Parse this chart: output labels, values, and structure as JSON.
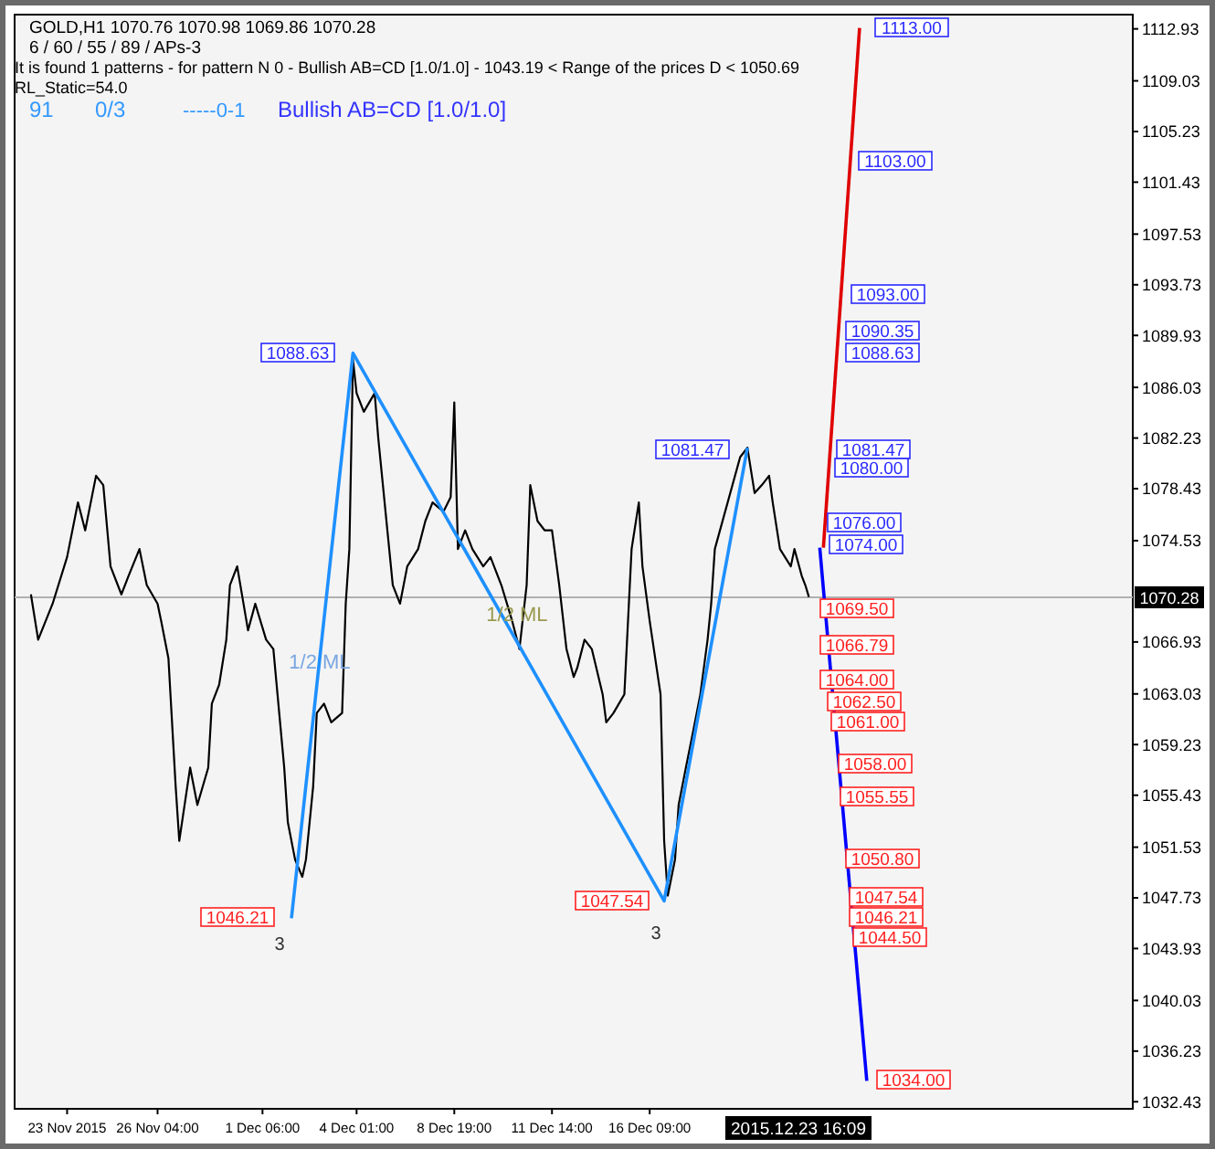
{
  "chart_data": {
    "type": "line",
    "title": "GOLD,H1  1070.76 1070.98 1069.86 1070.28",
    "annotations": [
      "6 / 60 / 55 / 89 / APs-3",
      "It is found 1 patterns  -  for pattern N 0 - Bullish AB=CD [1.0/1.0] - 1043.19 < Range of the prices D < 1050.69",
      "RL_Static=54.0",
      "91",
      "0/3",
      "-----0-1",
      "Bullish AB=CD [1.0/1.0]",
      "1/2 ML",
      "1/2 ML",
      "3",
      "3",
      "2015.12.23 16:09",
      "1088.63",
      "1046.21",
      "1047.54",
      "1081.47",
      "1113.00",
      "1103.00",
      "1093.00",
      "1090.35",
      "1088.63",
      "1081.47",
      "1080.00",
      "1076.00",
      "1074.00",
      "1069.50",
      "1066.79",
      "1064.00",
      "1062.50",
      "1061.00",
      "1058.00",
      "1055.55",
      "1050.80",
      "1047.54",
      "1046.21",
      "1044.50",
      "1034.00"
    ],
    "categories": [
      null,
      null,
      null,
      null,
      null,
      null,
      null,
      null,
      null,
      null,
      null,
      null,
      null,
      null,
      "23 Nov 2015",
      null,
      null,
      null,
      null,
      null,
      null,
      null,
      null,
      null,
      null,
      null,
      null,
      null,
      null,
      null,
      null,
      null,
      null,
      null,
      null,
      null,
      null,
      null,
      null,
      "26 Nov 04:00",
      null,
      null,
      null,
      null,
      null,
      null,
      null,
      null,
      null,
      null,
      null,
      null,
      null,
      null,
      null,
      null,
      null,
      null,
      null,
      null,
      null,
      null,
      null,
      null,
      null,
      null,
      null,
      null,
      "1 Dec 06:00",
      null,
      null,
      null,
      null,
      null,
      null,
      null,
      null,
      null,
      null,
      null,
      null,
      null,
      null,
      null,
      null,
      null,
      null,
      null,
      null,
      null,
      null,
      null,
      null,
      null,
      "4 Dec 01:00",
      null,
      null,
      null,
      null,
      null,
      null,
      null,
      null,
      null,
      null,
      null,
      null,
      null,
      null,
      null,
      null,
      null,
      null,
      null,
      null,
      null,
      null,
      null,
      null,
      null,
      null,
      "8 Dec 19:00",
      null,
      null,
      null,
      null,
      null,
      null,
      null,
      null,
      null,
      null,
      null,
      null,
      null,
      null,
      null,
      null,
      null,
      null,
      null,
      null,
      null,
      null,
      null,
      null,
      null,
      null,
      "11 Dec 14:00",
      null,
      null,
      null,
      null,
      null,
      null,
      null,
      null,
      null,
      null,
      null,
      null,
      null,
      null,
      null,
      null,
      null,
      null,
      null,
      null,
      null,
      null,
      null,
      null,
      null,
      null,
      "16 Dec 09:00",
      null,
      null,
      null,
      null,
      null,
      null,
      null,
      null,
      null,
      null,
      null,
      null,
      null,
      null,
      null,
      null,
      null,
      null,
      null,
      null,
      null,
      null,
      null,
      null,
      null,
      null,
      null,
      null,
      null,
      null,
      null,
      null,
      null,
      null,
      null,
      null,
      null,
      null,
      null,
      null,
      null,
      null,
      null,
      null,
      null,
      null,
      null,
      null,
      null,
      null,
      null,
      null,
      null,
      null,
      null,
      null,
      null,
      null,
      null,
      null,
      null,
      null,
      null,
      null,
      null,
      null,
      null,
      null,
      null,
      null,
      null,
      null,
      null,
      null,
      null,
      null,
      null,
      null,
      null,
      null,
      null,
      null,
      null,
      null,
      null,
      null,
      null,
      null,
      null,
      null,
      null,
      null,
      null,
      null,
      null,
      null,
      null,
      null,
      null,
      null,
      null,
      null,
      null,
      null,
      null,
      null,
      null,
      null,
      null,
      null,
      null,
      null,
      null,
      null,
      null,
      null,
      null,
      null,
      null,
      null,
      null,
      null,
      null,
      null,
      null,
      null,
      null,
      null,
      null,
      null,
      null,
      null,
      null
    ],
    "series": [
      {
        "color": "#000000",
        "values": [
          null,
          null,
          null,
          null,
          1070.5,
          null,
          1067.1,
          null,
          null,
          null,
          1069.8,
          null,
          null,
          null,
          1073.3,
          null,
          null,
          1077.4,
          null,
          1075.3,
          null,
          null,
          1079.4,
          null,
          1078.7,
          null,
          1072.6,
          null,
          null,
          1070.5,
          null,
          1071.9,
          null,
          null,
          1073.9,
          null,
          1071.2,
          null,
          null,
          1069.8,
          1068.5,
          null,
          1065.7,
          null,
          1056.1,
          1052.0,
          null,
          null,
          1057.5,
          null,
          1054.7,
          null,
          null,
          1057.5,
          1062.3,
          null,
          1063.7,
          null,
          1067.1,
          1071.2,
          null,
          1072.6,
          null,
          null,
          1067.8,
          null,
          1069.8,
          null,
          null,
          1067.1,
          null,
          1066.4,
          null,
          null,
          1057.5,
          1053.4,
          null,
          1050.6,
          null,
          1049.3,
          1050.6,
          null,
          1056.1,
          1061.6,
          null,
          1062.3,
          null,
          1060.9,
          null,
          null,
          1061.6,
          1069.8,
          1073.9,
          1088.1,
          1085.6,
          null,
          1084.2,
          null,
          null,
          1085.6,
          1082.2,
          null,
          1076.7,
          null,
          1071.2,
          null,
          1069.8,
          null,
          1072.6,
          null,
          null,
          1073.9,
          null,
          1076.0,
          null,
          1077.4,
          null,
          null,
          1076.7,
          null,
          1077.8,
          1084.9,
          1073.9,
          null,
          1075.3,
          null,
          1073.9,
          null,
          null,
          1072.6,
          null,
          1073.3,
          null,
          null,
          1071.2,
          null,
          null,
          1068.5,
          null,
          1066.4,
          null,
          1071.2,
          1078.7,
          null,
          1076.0,
          null,
          1075.3,
          null,
          1075.3,
          null,
          1071.2,
          null,
          1066.4,
          null,
          1064.3,
          1065.0,
          null,
          1067.1,
          null,
          1066.4,
          null,
          null,
          1063.0,
          1060.9,
          null,
          1061.6,
          null,
          null,
          1063.0,
          null,
          1073.9,
          null,
          1077.4,
          1072.6,
          null,
          1068.5,
          null,
          null,
          1063.0,
          1052.0,
          1047.9,
          null,
          1050.6,
          1054.7,
          null,
          1057.5,
          null,
          1060.2,
          null,
          1063.0,
          null,
          1067.1,
          1069.8,
          1073.9,
          null,
          null,
          null,
          null,
          null,
          null,
          1080.8,
          null,
          1081.5,
          null,
          1078.1,
          null,
          1078.7,
          null,
          1079.4,
          1077.4,
          null,
          1073.9,
          null,
          null,
          1072.6,
          1073.9,
          null,
          1071.9,
          1071.2,
          1070.3,
          null,
          null,
          null,
          null,
          null,
          null,
          null,
          null,
          null,
          null,
          null,
          null,
          null,
          null,
          null,
          null,
          null,
          null,
          null,
          null,
          null,
          null,
          null,
          null,
          null,
          null,
          null,
          null,
          null,
          null,
          null,
          null,
          null,
          null,
          null,
          null,
          null,
          null,
          null,
          null,
          null,
          null,
          null,
          null,
          null,
          null,
          null,
          null,
          null,
          null,
          null,
          null,
          null,
          null,
          null,
          null,
          null,
          null,
          null,
          null,
          null,
          null,
          null,
          null,
          null,
          null,
          null,
          null,
          null,
          null,
          null,
          null,
          null,
          null,
          null,
          null,
          null,
          null,
          null,
          null,
          null,
          null,
          null,
          null,
          null,
          null,
          null,
          null,
          null
        ]
      },
      {
        "color": "#1e90ff",
        "values": [
          null,
          null,
          null,
          null,
          null,
          null,
          null,
          null,
          null,
          null,
          null,
          null,
          null,
          null,
          null,
          null,
          null,
          null,
          null,
          null,
          null,
          null,
          null,
          null,
          null,
          null,
          null,
          null,
          null,
          null,
          null,
          null,
          null,
          null,
          null,
          null,
          null,
          null,
          null,
          null,
          null,
          null,
          null,
          null,
          null,
          null,
          null,
          null,
          null,
          null,
          null,
          null,
          null,
          null,
          null,
          null,
          null,
          null,
          null,
          null,
          null,
          null,
          null,
          null,
          null,
          null,
          null,
          null,
          null,
          null,
          null,
          null,
          null,
          null,
          null,
          null,
          1046.2,
          null,
          null,
          null,
          null,
          null,
          null,
          null,
          null,
          null,
          null,
          null,
          null,
          null,
          null,
          null,
          null,
          1088.6,
          null,
          null,
          null,
          null,
          null,
          null,
          null,
          null,
          null,
          null,
          null,
          null,
          null,
          null,
          null,
          null,
          null,
          null,
          null,
          null,
          null,
          null,
          null,
          null,
          null,
          null,
          null,
          null,
          null,
          null,
          null,
          null,
          null,
          null,
          null,
          null,
          null,
          null,
          null,
          null,
          null,
          null,
          null,
          null,
          null,
          null,
          null,
          null,
          null,
          null,
          null,
          null,
          null,
          null,
          null,
          null,
          null,
          null,
          null,
          null,
          null,
          null,
          null,
          null,
          null,
          null,
          null,
          null,
          null,
          null,
          null,
          null,
          null,
          null,
          null,
          null,
          null,
          null,
          null,
          null,
          null,
          null,
          null,
          null,
          null,
          1047.5,
          null,
          null,
          null,
          null,
          null,
          null,
          null,
          null,
          null,
          null,
          null,
          null,
          null,
          null,
          null,
          null,
          null,
          null,
          null,
          null,
          null,
          null,
          1081.5,
          null,
          null,
          null,
          null,
          null,
          null,
          null,
          null,
          null,
          null,
          null,
          null,
          null,
          null,
          null,
          null,
          null,
          null,
          null,
          null,
          null,
          null,
          null,
          null,
          null,
          null,
          null,
          null,
          null,
          null,
          null,
          null,
          null,
          null,
          null,
          null,
          null,
          null,
          null,
          null,
          null,
          null,
          null,
          null,
          null,
          null,
          null,
          null,
          null,
          null,
          null,
          null,
          null,
          null,
          null,
          null,
          null,
          null,
          null,
          null,
          null,
          null,
          null,
          null,
          null,
          null,
          null,
          null,
          null,
          null,
          null,
          null,
          null,
          null,
          null,
          null,
          null,
          null,
          null,
          null,
          null,
          null,
          null,
          null,
          null,
          null,
          null,
          null,
          null,
          null,
          null,
          null,
          null,
          null,
          null,
          null,
          null,
          null,
          null,
          null,
          null,
          null,
          null,
          null,
          null,
          null
        ]
      },
      {
        "color": "#e00000",
        "values": [
          null,
          null,
          null,
          null,
          null,
          null,
          null,
          null,
          null,
          null,
          null,
          null,
          null,
          null,
          null,
          null,
          null,
          null,
          null,
          null,
          null,
          null,
          null,
          null,
          null,
          null,
          null,
          null,
          null,
          null,
          null,
          null,
          null,
          null,
          null,
          null,
          null,
          null,
          null,
          null,
          null,
          null,
          null,
          null,
          null,
          null,
          null,
          null,
          null,
          null,
          null,
          null,
          null,
          null,
          null,
          null,
          null,
          null,
          null,
          null,
          null,
          null,
          null,
          null,
          null,
          null,
          null,
          null,
          null,
          null,
          null,
          null,
          null,
          null,
          null,
          null,
          null,
          null,
          null,
          null,
          null,
          null,
          null,
          null,
          null,
          null,
          null,
          null,
          null,
          null,
          null,
          null,
          null,
          null,
          null,
          null,
          null,
          null,
          null,
          null,
          null,
          null,
          null,
          null,
          null,
          null,
          null,
          null,
          null,
          null,
          null,
          null,
          null,
          null,
          null,
          null,
          null,
          null,
          null,
          null,
          null,
          null,
          null,
          null,
          null,
          null,
          null,
          null,
          null,
          null,
          null,
          null,
          null,
          null,
          null,
          null,
          null,
          null,
          null,
          null,
          null,
          null,
          null,
          null,
          null,
          null,
          null,
          null,
          null,
          null,
          null,
          null,
          null,
          null,
          null,
          null,
          null,
          null,
          null,
          null,
          null,
          null,
          null,
          null,
          null,
          null,
          null,
          null,
          null,
          null,
          null,
          null,
          null,
          null,
          null,
          null,
          null,
          null,
          null,
          null,
          null,
          null,
          null,
          null,
          null,
          null,
          null,
          null,
          null,
          null,
          null,
          null,
          null,
          null,
          null,
          null,
          null,
          null,
          null,
          null,
          null,
          null,
          null,
          null,
          null,
          null,
          null,
          null,
          null,
          null,
          null,
          null,
          null,
          null,
          null,
          null,
          null,
          null,
          null,
          null,
          null,
          null,
          null,
          1074.0,
          null,
          null,
          null,
          null,
          null,
          null,
          null,
          null,
          null,
          1113.0,
          null,
          null,
          null,
          null,
          null,
          null,
          null,
          null,
          null,
          null,
          null,
          null,
          null,
          null,
          null,
          null,
          null,
          null,
          null,
          null,
          null,
          null,
          null,
          null,
          null,
          null,
          null,
          null,
          null,
          null,
          null,
          null,
          null,
          null,
          null,
          null,
          null,
          null,
          null,
          null,
          null,
          null,
          null,
          null,
          null,
          null,
          null,
          null,
          null,
          null,
          null,
          null,
          null,
          null,
          null,
          null,
          null,
          null,
          null,
          null,
          null,
          null,
          null,
          null,
          null,
          null,
          null,
          null,
          null,
          null,
          null,
          null,
          null,
          null,
          null
        ]
      },
      {
        "color": "#0000ff",
        "values": [
          null,
          null,
          null,
          null,
          null,
          null,
          null,
          null,
          null,
          null,
          null,
          null,
          null,
          null,
          null,
          null,
          null,
          null,
          null,
          null,
          null,
          null,
          null,
          null,
          null,
          null,
          null,
          null,
          null,
          null,
          null,
          null,
          null,
          null,
          null,
          null,
          null,
          null,
          null,
          null,
          null,
          null,
          null,
          null,
          null,
          null,
          null,
          null,
          null,
          null,
          null,
          null,
          null,
          null,
          null,
          null,
          null,
          null,
          null,
          null,
          null,
          null,
          null,
          null,
          null,
          null,
          null,
          null,
          null,
          null,
          null,
          null,
          null,
          null,
          null,
          null,
          null,
          null,
          null,
          null,
          null,
          null,
          null,
          null,
          null,
          null,
          null,
          null,
          null,
          null,
          null,
          null,
          null,
          null,
          null,
          null,
          null,
          null,
          null,
          null,
          null,
          null,
          null,
          null,
          null,
          null,
          null,
          null,
          null,
          null,
          null,
          null,
          null,
          null,
          null,
          null,
          null,
          null,
          null,
          null,
          null,
          null,
          null,
          null,
          null,
          null,
          null,
          null,
          null,
          null,
          null,
          null,
          null,
          null,
          null,
          null,
          null,
          null,
          null,
          null,
          null,
          null,
          null,
          null,
          null,
          null,
          null,
          null,
          null,
          null,
          null,
          null,
          null,
          null,
          null,
          null,
          null,
          null,
          null,
          null,
          null,
          null,
          null,
          null,
          null,
          null,
          null,
          null,
          null,
          null,
          null,
          null,
          null,
          null,
          null,
          null,
          null,
          null,
          null,
          null,
          null,
          null,
          null,
          null,
          null,
          null,
          null,
          null,
          null,
          null,
          null,
          null,
          null,
          null,
          null,
          null,
          null,
          null,
          null,
          null,
          null,
          null,
          null,
          null,
          null,
          null,
          null,
          null,
          null,
          null,
          null,
          null,
          null,
          null,
          null,
          null,
          null,
          null,
          null,
          null,
          null,
          null,
          1074.0,
          null,
          null,
          null,
          null,
          null,
          null,
          null,
          null,
          null,
          null,
          null,
          null,
          1034.0,
          null,
          null,
          null,
          null,
          null,
          null,
          null,
          null,
          null,
          null,
          null,
          null,
          null,
          null,
          null,
          null,
          null,
          null,
          null,
          null,
          null,
          null,
          null,
          null,
          null,
          null,
          null,
          null,
          null,
          null,
          null,
          null,
          null,
          null,
          null,
          null,
          null,
          null,
          null,
          null,
          null,
          null,
          null,
          null,
          null,
          null,
          null,
          null,
          null,
          null,
          null,
          null,
          null,
          null,
          null,
          null,
          null,
          null,
          null,
          null,
          null,
          null,
          null,
          null,
          null,
          null,
          null,
          null,
          null,
          null,
          null,
          null,
          null
        ]
      }
    ],
    "ref_lines": [
      {
        "axis": "y",
        "value": 1070.28,
        "label": "1070.28",
        "color": "#b0b0b0"
      }
    ],
    "ylim": [
      1031.9,
      1114.0
    ],
    "yticks": [
      1112.93,
      1109.03,
      1105.23,
      1101.43,
      1097.53,
      1093.73,
      1089.93,
      1086.03,
      1082.23,
      1078.43,
      1074.53,
      1066.93,
      1063.03,
      1059.23,
      1055.43,
      1051.53,
      1047.73,
      1043.93,
      1040.03,
      1036.23,
      1032.43
    ],
    "grid": false
  }
}
